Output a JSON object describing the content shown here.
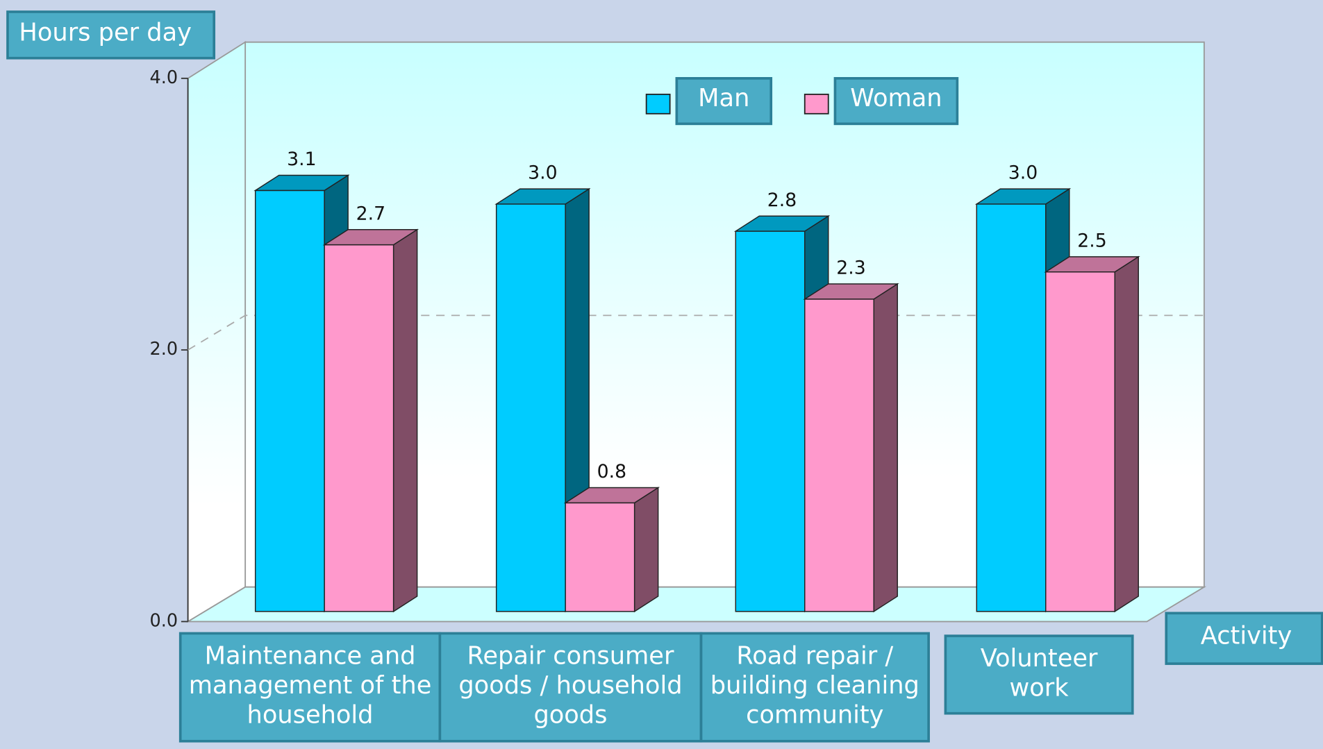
{
  "chart_data": {
    "type": "bar3d",
    "ylabel": "Hours per day",
    "xlabel": "Activity",
    "categories": [
      [
        "Maintenance and",
        "management of the",
        "household"
      ],
      [
        "Repair  consumer",
        "goods / household",
        "goods"
      ],
      [
        "Road repair /",
        "building cleaning",
        "community"
      ],
      [
        "Volunteer",
        "work"
      ]
    ],
    "series": [
      {
        "name": "Man",
        "color": "#00ccff",
        "values": [
          3.1,
          3.0,
          2.8,
          3.0
        ],
        "value_labels": [
          "3.1",
          "3.0",
          "2.8",
          "3.0"
        ]
      },
      {
        "name": "Woman",
        "color": "#ff99cc",
        "values": [
          2.7,
          0.8,
          2.3,
          2.5
        ],
        "value_labels": [
          "2.7",
          "0.8",
          "2.3",
          "2.5"
        ]
      }
    ],
    "ylim": [
      0,
      4
    ],
    "yticks": [
      {
        "value": 0,
        "label": "0.0"
      },
      {
        "value": 2,
        "label": "2.0"
      },
      {
        "value": 4,
        "label": "4.0"
      }
    ],
    "grid": true
  }
}
